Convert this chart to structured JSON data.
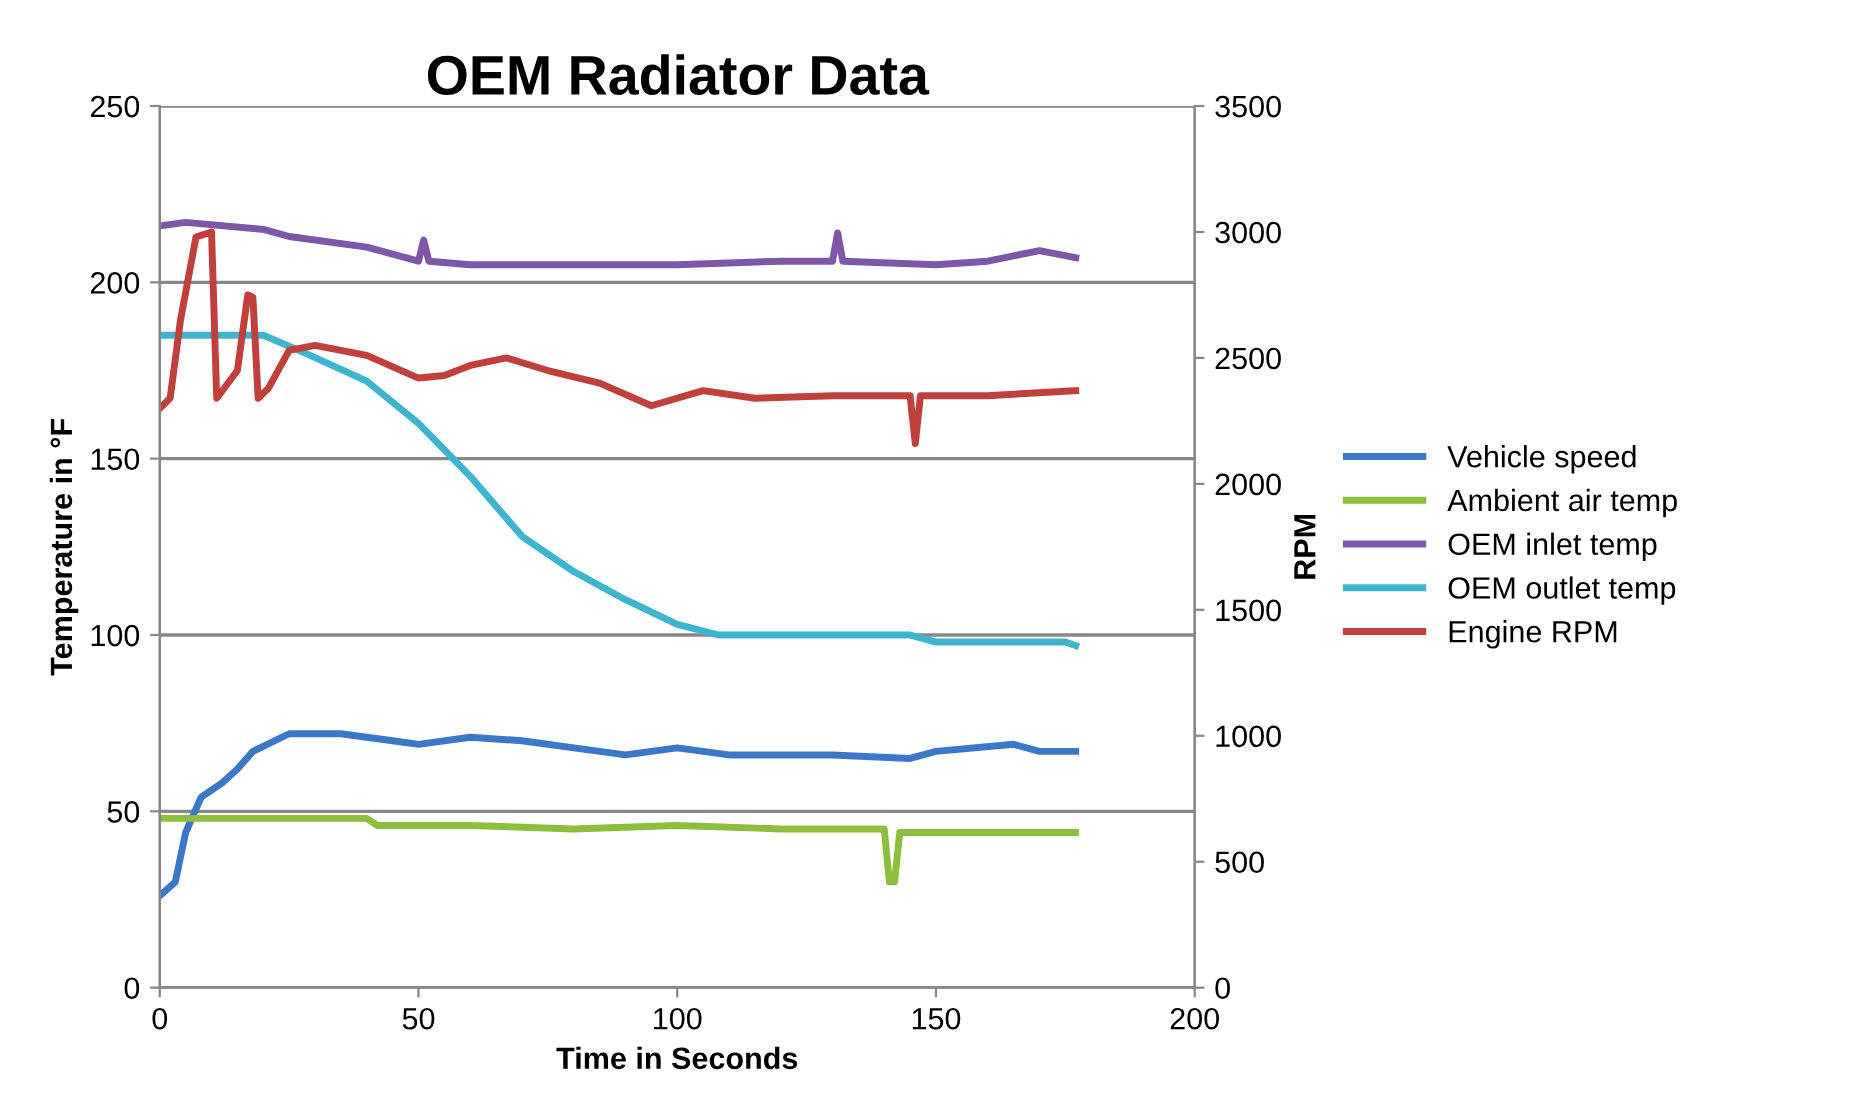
{
  "chart_data": {
    "type": "line",
    "title": "OEM Radiator Data",
    "xlabel": "Time in Seconds",
    "ylabel": "Temperature in °F",
    "y2label": "RPM",
    "xlim": [
      0,
      200
    ],
    "xticks": [
      0,
      50,
      100,
      150,
      200
    ],
    "ylim": [
      0,
      250
    ],
    "yticks": [
      0,
      50,
      100,
      150,
      200,
      250
    ],
    "y2lim": [
      0,
      3500
    ],
    "y2ticks": [
      0,
      500,
      1000,
      1500,
      2000,
      2500,
      3000,
      3500
    ],
    "grid": "y",
    "legend": "right",
    "marker": "none",
    "line_style": "solid",
    "series": [
      {
        "name": "Vehicle speed",
        "color": "#3c78c8",
        "x": [
          0,
          3,
          5,
          8,
          12,
          15,
          18,
          25,
          35,
          45,
          50,
          60,
          70,
          80,
          90,
          100,
          110,
          130,
          145,
          150,
          165,
          170,
          177
        ],
        "values": [
          26,
          30,
          44,
          54,
          58,
          62,
          67,
          72,
          72,
          70,
          69,
          71,
          70,
          68,
          66,
          68,
          66,
          66,
          65,
          67,
          69,
          67,
          67
        ]
      },
      {
        "name": "Ambient air temp",
        "color": "#8cbf3f",
        "x": [
          0,
          40,
          42,
          60,
          80,
          100,
          120,
          140,
          141,
          142,
          143,
          145,
          177
        ],
        "values": [
          48,
          48,
          46,
          46,
          45,
          46,
          45,
          45,
          30,
          30,
          44,
          44,
          44
        ]
      },
      {
        "name": "OEM inlet temp",
        "color": "#7e57a8",
        "x": [
          0,
          5,
          20,
          25,
          40,
          50,
          51,
          52,
          60,
          100,
          120,
          130,
          131,
          132,
          150,
          160,
          170,
          177
        ],
        "values": [
          216,
          217,
          215,
          213,
          210,
          206,
          212,
          206,
          205,
          205,
          206,
          206,
          214,
          206,
          205,
          206,
          209,
          207
        ]
      },
      {
        "name": "OEM outlet temp",
        "color": "#3fb4cf",
        "x": [
          0,
          20,
          28,
          40,
          50,
          60,
          70,
          80,
          90,
          100,
          108,
          145,
          150,
          175,
          177
        ],
        "values": [
          185,
          185,
          180,
          172,
          160,
          145,
          128,
          118,
          110,
          103,
          100,
          100,
          98,
          98,
          97
        ]
      },
      {
        "name": "Engine RPM",
        "color": "#c0403c",
        "axis": "y2",
        "x": [
          0,
          2,
          4,
          7,
          10,
          11,
          15,
          17,
          18,
          19,
          21,
          25,
          30,
          40,
          50,
          55,
          60,
          67,
          75,
          85,
          95,
          105,
          115,
          130,
          145,
          146,
          147,
          160,
          177
        ],
        "values": [
          2300,
          2340,
          2650,
          2980,
          3000,
          2340,
          2450,
          2750,
          2740,
          2340,
          2380,
          2530,
          2550,
          2510,
          2420,
          2430,
          2470,
          2500,
          2450,
          2400,
          2310,
          2370,
          2340,
          2350,
          2350,
          2160,
          2350,
          2350,
          2370
        ]
      }
    ]
  }
}
